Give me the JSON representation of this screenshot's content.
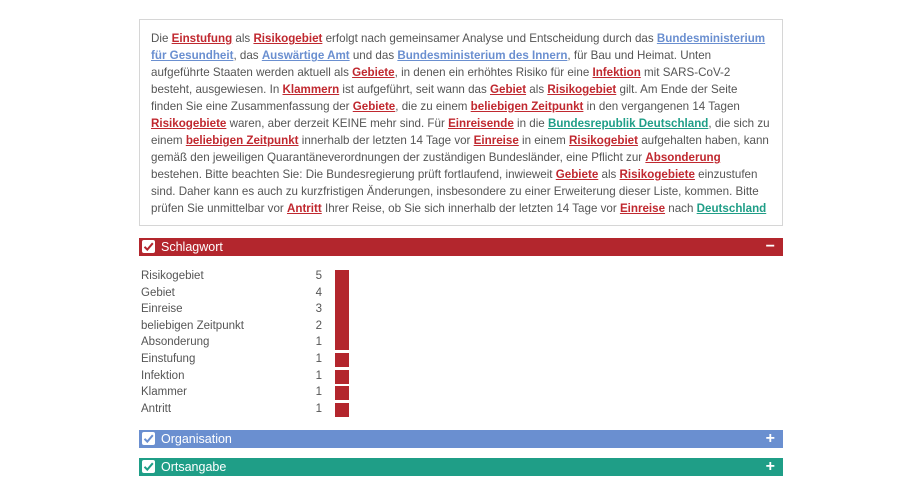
{
  "text": [
    {
      "t": "Die "
    },
    {
      "t": "Einstufung",
      "e": "k"
    },
    {
      "t": " als "
    },
    {
      "t": "Risikogebiet",
      "e": "k"
    },
    {
      "t": " erfolgt nach gemeinsamer Analyse und Entscheidung durch das "
    },
    {
      "t": "Bundesministerium für Gesundheit",
      "e": "o"
    },
    {
      "t": ", das "
    },
    {
      "t": "Auswärtige Amt",
      "e": "o"
    },
    {
      "t": " und das "
    },
    {
      "t": "Bundesministerium des Innern",
      "e": "o"
    },
    {
      "t": ", für Bau und Heimat. Unten aufgeführte Staaten werden aktuell als "
    },
    {
      "t": "Gebiete",
      "e": "k"
    },
    {
      "t": ", in denen ein erhöhtes Risiko für eine "
    },
    {
      "t": "Infektion",
      "e": "k"
    },
    {
      "t": " mit SARS-CoV-2 besteht, ausgewiesen. In "
    },
    {
      "t": "Klammern",
      "e": "k"
    },
    {
      "t": " ist aufgeführt, seit wann das "
    },
    {
      "t": "Gebiet",
      "e": "k"
    },
    {
      "t": " als "
    },
    {
      "t": "Risikogebiet",
      "e": "k"
    },
    {
      "t": " gilt. Am Ende der Seite finden Sie eine Zusammenfassung der "
    },
    {
      "t": "Gebiete",
      "e": "k"
    },
    {
      "t": ", die zu einem "
    },
    {
      "t": "beliebigen Zeitpunkt",
      "e": "k"
    },
    {
      "t": " in den vergangenen 14 Tagen "
    },
    {
      "t": "Risikogebiete",
      "e": "k"
    },
    {
      "t": " waren, aber derzeit KEINE mehr sind. Für "
    },
    {
      "t": "Einreisende",
      "e": "k"
    },
    {
      "t": " in die "
    },
    {
      "t": "Bundesrepublik Deutschland",
      "e": "l"
    },
    {
      "t": ", die sich zu einem "
    },
    {
      "t": "beliebigen Zeitpunkt",
      "e": "k"
    },
    {
      "t": " innerhalb der letzten 14 Tage vor "
    },
    {
      "t": "Einreise",
      "e": "k"
    },
    {
      "t": " in einem "
    },
    {
      "t": "Risikogebiet",
      "e": "k"
    },
    {
      "t": " aufgehalten haben, kann gemäß den jeweiligen Quarantäneverordnungen der zuständigen Bundesländer, eine Pflicht zur "
    },
    {
      "t": "Absonderung",
      "e": "k"
    },
    {
      "t": " bestehen. Bitte beachten Sie: Die Bundesregierung prüft fortlaufend, inwieweit "
    },
    {
      "t": "Gebiete",
      "e": "k"
    },
    {
      "t": " als "
    },
    {
      "t": "Risikogebiete",
      "e": "k"
    },
    {
      "t": " einzustufen sind. Daher kann es auch zu kurzfristigen Änderungen, insbesondere zu einer Erweiterung dieser Liste, kommen. Bitte prüfen Sie unmittelbar vor "
    },
    {
      "t": "Antritt",
      "e": "k"
    },
    {
      "t": " Ihrer Reise, ob Sie sich innerhalb der letzten 14 Tage vor "
    },
    {
      "t": "Einreise",
      "e": "k"
    },
    {
      "t": " nach "
    },
    {
      "t": "Deutschland",
      "e": "l"
    }
  ],
  "colors": {
    "k": "#c0282f",
    "o": "#6a8fd0",
    "l": "#1f9e87"
  },
  "sections": {
    "schlagwort": {
      "label": "Schlagwort",
      "toggle": "−",
      "color": "#b3262d",
      "expanded": true
    },
    "organisation": {
      "label": "Organisation",
      "toggle": "+",
      "color": "#6a8fd0",
      "expanded": false
    },
    "ortsangabe": {
      "label": "Ortsangabe",
      "toggle": "+",
      "color": "#1f9e87",
      "expanded": false
    }
  },
  "keywords": [
    {
      "term": "Risikogebiet",
      "count": 5
    },
    {
      "term": "Gebiet",
      "count": 4
    },
    {
      "term": "Einreise",
      "count": 3
    },
    {
      "term": "beliebigen Zeitpunkt",
      "count": 2
    },
    {
      "term": "Absonderung",
      "count": 1
    },
    {
      "term": "Einstufung",
      "count": 1
    },
    {
      "term": "Infektion",
      "count": 1
    },
    {
      "term": "Klammer",
      "count": 1
    },
    {
      "term": "Antritt",
      "count": 1
    }
  ]
}
